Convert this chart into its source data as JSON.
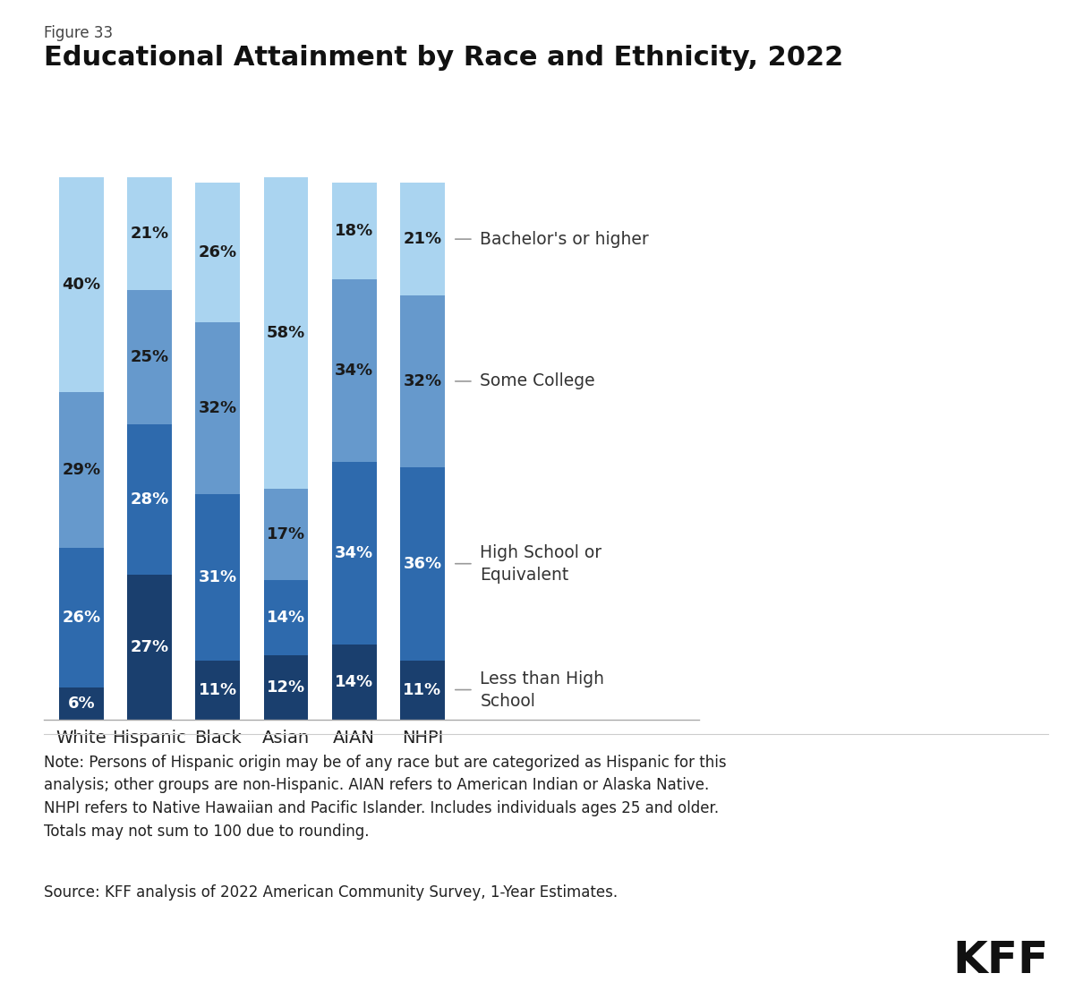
{
  "figure_label": "Figure 33",
  "title": "Educational Attainment by Race and Ethnicity, 2022",
  "categories": [
    "White",
    "Hispanic",
    "Black",
    "Asian",
    "AIAN",
    "NHPI"
  ],
  "segments": [
    {
      "label": "Less than High\nSchool",
      "values": [
        6,
        27,
        11,
        12,
        14,
        11
      ],
      "color": "#1a3f6e"
    },
    {
      "label": "High School or\nEquivalent",
      "values": [
        26,
        28,
        31,
        14,
        34,
        36
      ],
      "color": "#2e6aad"
    },
    {
      "label": "Some College",
      "values": [
        29,
        25,
        32,
        17,
        34,
        32
      ],
      "color": "#6699cc"
    },
    {
      "label": "Bachelor's or higher",
      "values": [
        40,
        21,
        26,
        58,
        18,
        21
      ],
      "color": "#aad4f0"
    }
  ],
  "note_text": "Note: Persons of Hispanic origin may be of any race but are categorized as Hispanic for this\nanalysis; other groups are non-Hispanic. AIAN refers to American Indian or Alaska Native.\nNHPI refers to Native Hawaiian and Pacific Islander. Includes individuals ages 25 and older.\nTotals may not sum to 100 due to rounding.",
  "source_text": "Source: KFF analysis of 2022 American Community Survey, 1-Year Estimates.",
  "background_color": "#ffffff",
  "bar_width": 0.65
}
